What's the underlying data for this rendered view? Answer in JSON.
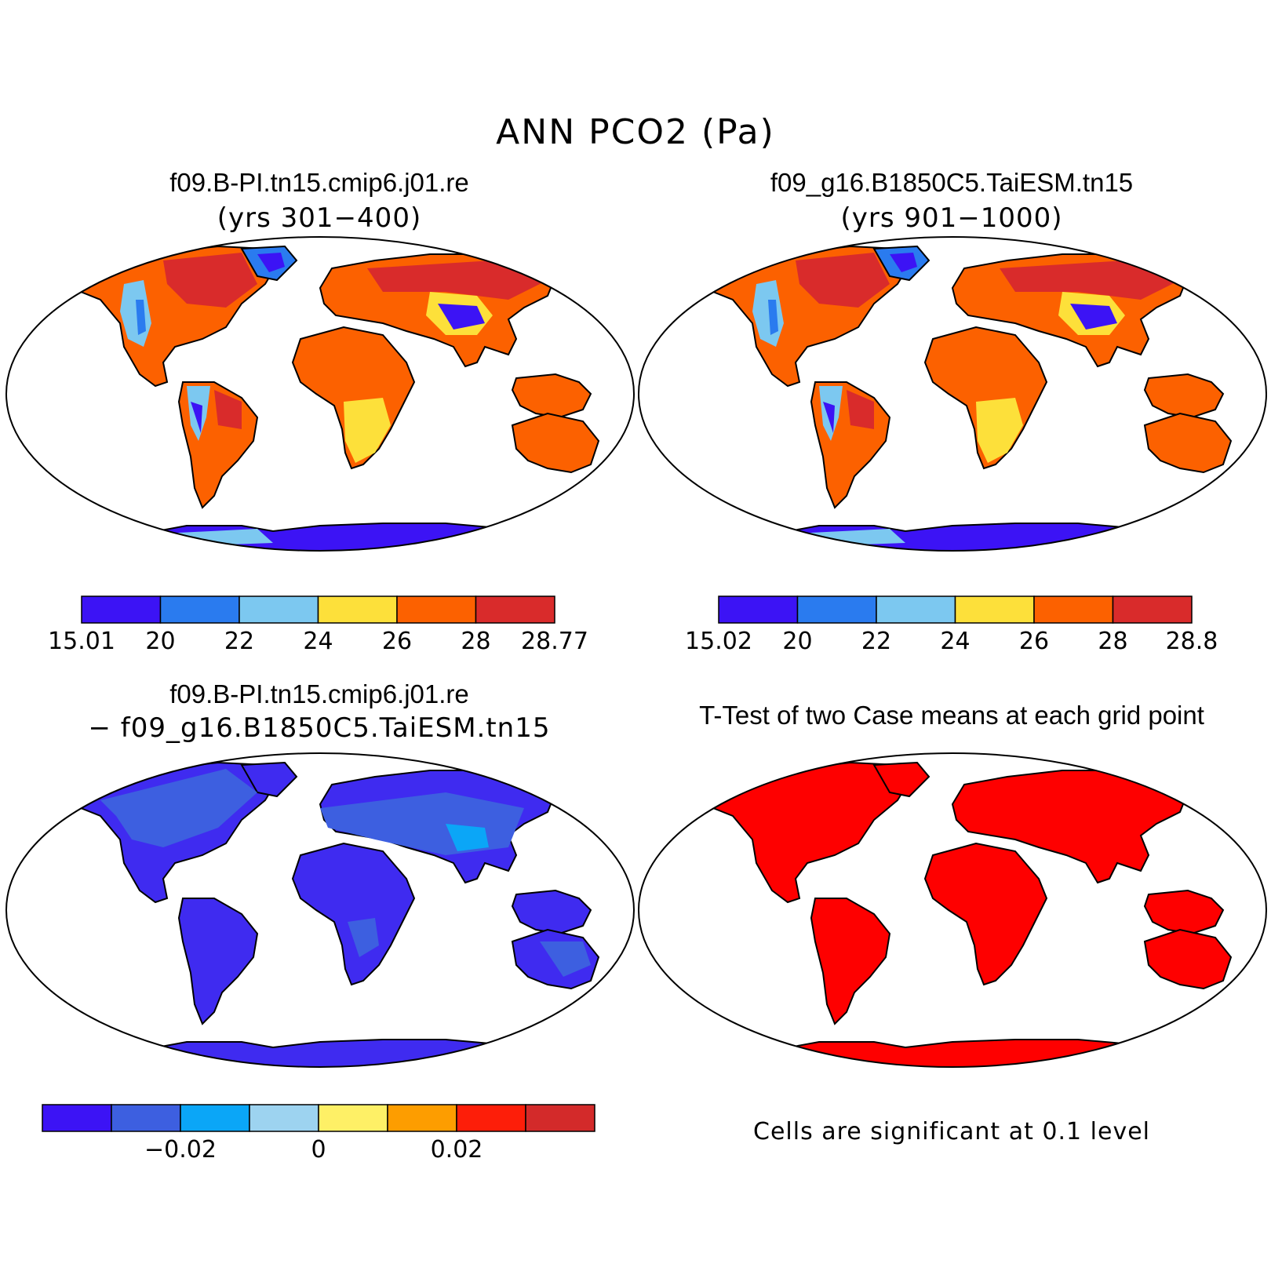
{
  "main_title": "ANN PCO2 (Pa)",
  "panels": [
    {
      "title": "f09.B-PI.tn15.cmip6.j01.re",
      "subtitle": "(yrs 301−400)"
    },
    {
      "title": "f09_g16.B1850C5.TaiESM.tn15",
      "subtitle": "(yrs 901−1000)"
    },
    {
      "title": "f09.B-PI.tn15.cmip6.j01.re",
      "subtitle": "− f09_g16.B1850C5.TaiESM.tn15"
    },
    {
      "title": "T-Test of two Case means at each grid point",
      "subtitle": ""
    }
  ],
  "colorbar1": {
    "colors": [
      "#3c13f5",
      "#2a7bef",
      "#7cc8f0",
      "#fde03a",
      "#fc6100",
      "#d92b2b"
    ],
    "labels": [
      "15.01",
      "20",
      "22",
      "24",
      "26",
      "28",
      "28.77"
    ]
  },
  "colorbar2": {
    "colors": [
      "#3c13f5",
      "#2a7bef",
      "#7cc8f0",
      "#fde03a",
      "#fc6100",
      "#d92b2b"
    ],
    "labels": [
      "15.02",
      "20",
      "22",
      "24",
      "26",
      "28",
      "28.8"
    ]
  },
  "colorbar3": {
    "colors": [
      "#3c13f5",
      "#3d5fe0",
      "#0ba6f7",
      "#9dd3f0",
      "#fef066",
      "#fd9d00",
      "#fd1e09",
      "#d32a2a"
    ],
    "labels": [
      "−0.02",
      "0",
      "0.02"
    ]
  },
  "ttest_note": "Cells are significant at 0.1 level",
  "colors": {
    "ttest_land": "#fe0000",
    "diff_land": "#3f2bf0",
    "diff_land_light": "#3d5fe0",
    "diff_land_lighter": "#0ba6f7"
  }
}
